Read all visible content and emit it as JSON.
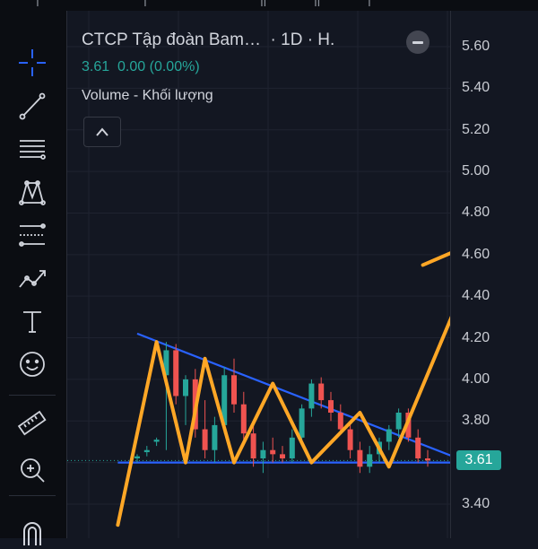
{
  "top": {
    "tabs": [
      "ı",
      "ı",
      "ıl",
      "ıl",
      "ı"
    ]
  },
  "legend": {
    "title": "CTCP Tập đoàn Bam…",
    "interval": "· 1D · H.",
    "price": "3.61",
    "change": "0.00",
    "change_pct": "(0.00%)",
    "volume_label": "Volume - Khối lượng"
  },
  "toolbar": {
    "icons": [
      "crosshair-icon",
      "trend-line-icon",
      "horizontal-lines-icon",
      "pattern-icon",
      "fib-icon",
      "projection-icon",
      "text-icon",
      "emoji-icon",
      "ruler-icon",
      "zoom-in-icon",
      "magnet-icon"
    ]
  },
  "colors": {
    "background": "#131722",
    "up": "#26a69a",
    "down": "#ef5350",
    "trendline": "#2962ff",
    "arrow": "#ffa726",
    "grid": "#1f2330"
  },
  "chart_data": {
    "type": "candlestick",
    "price_scale": [
      "5.60",
      "5.40",
      "5.20",
      "5.00",
      "4.80",
      "4.60",
      "4.40",
      "4.20",
      "4.00",
      "3.80",
      "3.60",
      "3.40"
    ],
    "last_price": "3.61",
    "ylim": [
      3.3,
      5.63
    ],
    "candles": [
      {
        "o": 3.62,
        "h": 3.64,
        "l": 3.6,
        "c": 3.63
      },
      {
        "o": 3.65,
        "h": 3.68,
        "l": 3.63,
        "c": 3.66
      },
      {
        "o": 3.7,
        "h": 3.72,
        "l": 3.68,
        "c": 3.71
      },
      {
        "o": 4.02,
        "h": 4.18,
        "l": 3.66,
        "c": 4.14
      },
      {
        "o": 4.14,
        "h": 4.17,
        "l": 3.88,
        "c": 3.92
      },
      {
        "o": 3.92,
        "h": 4.02,
        "l": 3.78,
        "c": 4.0
      },
      {
        "o": 4.0,
        "h": 4.05,
        "l": 3.72,
        "c": 3.76
      },
      {
        "o": 3.76,
        "h": 3.9,
        "l": 3.62,
        "c": 3.66
      },
      {
        "o": 3.66,
        "h": 3.82,
        "l": 3.6,
        "c": 3.78
      },
      {
        "o": 3.78,
        "h": 4.06,
        "l": 3.74,
        "c": 4.02
      },
      {
        "o": 4.02,
        "h": 4.1,
        "l": 3.84,
        "c": 3.88
      },
      {
        "o": 3.88,
        "h": 3.94,
        "l": 3.7,
        "c": 3.74
      },
      {
        "o": 3.74,
        "h": 3.8,
        "l": 3.58,
        "c": 3.62
      },
      {
        "o": 3.62,
        "h": 3.7,
        "l": 3.55,
        "c": 3.66
      },
      {
        "o": 3.66,
        "h": 3.72,
        "l": 3.6,
        "c": 3.64
      },
      {
        "o": 3.64,
        "h": 3.68,
        "l": 3.6,
        "c": 3.62
      },
      {
        "o": 3.62,
        "h": 3.76,
        "l": 3.6,
        "c": 3.72
      },
      {
        "o": 3.72,
        "h": 3.88,
        "l": 3.68,
        "c": 3.86
      },
      {
        "o": 3.86,
        "h": 4.0,
        "l": 3.82,
        "c": 3.98
      },
      {
        "o": 3.98,
        "h": 4.01,
        "l": 3.86,
        "c": 3.9
      },
      {
        "o": 3.9,
        "h": 3.94,
        "l": 3.8,
        "c": 3.84
      },
      {
        "o": 3.84,
        "h": 3.88,
        "l": 3.74,
        "c": 3.76
      },
      {
        "o": 3.76,
        "h": 3.8,
        "l": 3.62,
        "c": 3.66
      },
      {
        "o": 3.66,
        "h": 3.7,
        "l": 3.55,
        "c": 3.58
      },
      {
        "o": 3.58,
        "h": 3.68,
        "l": 3.55,
        "c": 3.64
      },
      {
        "o": 3.64,
        "h": 3.72,
        "l": 3.6,
        "c": 3.7
      },
      {
        "o": 3.7,
        "h": 3.78,
        "l": 3.66,
        "c": 3.76
      },
      {
        "o": 3.76,
        "h": 3.86,
        "l": 3.72,
        "c": 3.84
      },
      {
        "o": 3.84,
        "h": 3.86,
        "l": 3.7,
        "c": 3.72
      },
      {
        "o": 3.72,
        "h": 3.76,
        "l": 3.6,
        "c": 3.62
      },
      {
        "o": 3.62,
        "h": 3.66,
        "l": 3.58,
        "c": 3.61
      }
    ],
    "upper_trendline": [
      [
        0,
        4.22
      ],
      [
        37,
        3.55
      ]
    ],
    "support_line": [
      [
        -2,
        3.6
      ],
      [
        37,
        3.6
      ]
    ],
    "arrow_path": [
      [
        -2,
        3.3
      ],
      [
        2,
        4.18
      ],
      [
        5,
        3.6
      ],
      [
        7,
        4.1
      ],
      [
        10,
        3.6
      ],
      [
        14,
        3.98
      ],
      [
        18,
        3.6
      ],
      [
        23,
        3.84
      ],
      [
        26,
        3.58
      ],
      [
        33,
        4.36
      ],
      [
        35,
        4.66
      ]
    ],
    "arrow_head": [
      [
        29.5,
        4.55
      ],
      [
        35,
        4.66
      ],
      [
        36.5,
        4.4
      ]
    ]
  }
}
